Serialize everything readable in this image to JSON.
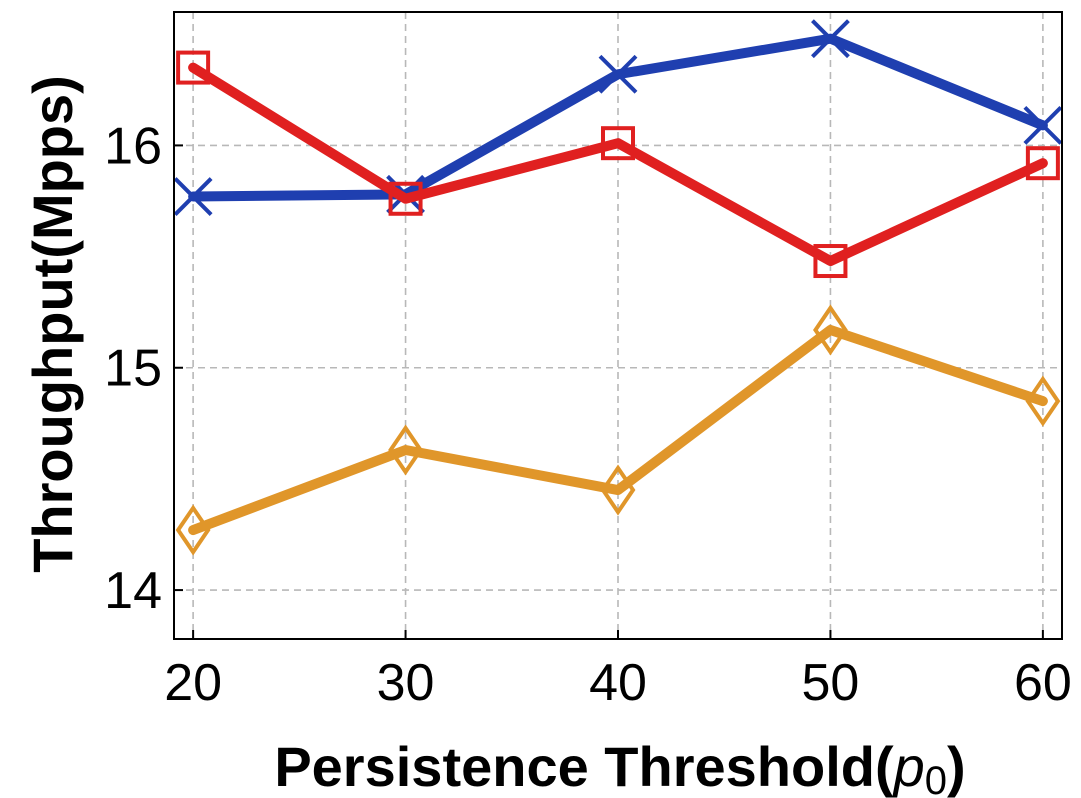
{
  "chart_data": {
    "type": "line",
    "title": "",
    "xlabel": "Persistence Threshold(",
    "xlabel_symbol": "p",
    "xlabel_subscript": "0",
    "xlabel_close": ")",
    "ylabel": "Throughput(Mpps)",
    "x": [
      20,
      30,
      40,
      50,
      60
    ],
    "xticks": [
      "20",
      "30",
      "40",
      "50",
      "60"
    ],
    "yticks": [
      "14",
      "15",
      "16"
    ],
    "xlim": [
      19.1,
      60.9
    ],
    "ylim": [
      13.78,
      16.6
    ],
    "grid": true,
    "series": [
      {
        "values": [
          15.77,
          15.78,
          16.32,
          16.48,
          16.09
        ],
        "color": "#1f3fb0",
        "marker": "x"
      },
      {
        "values": [
          16.35,
          15.76,
          16.01,
          15.48,
          15.92
        ],
        "color": "#e02020",
        "marker": "square"
      },
      {
        "values": [
          14.27,
          14.63,
          14.45,
          15.17,
          14.85
        ],
        "color": "#e0962a",
        "marker": "diamond"
      }
    ]
  }
}
